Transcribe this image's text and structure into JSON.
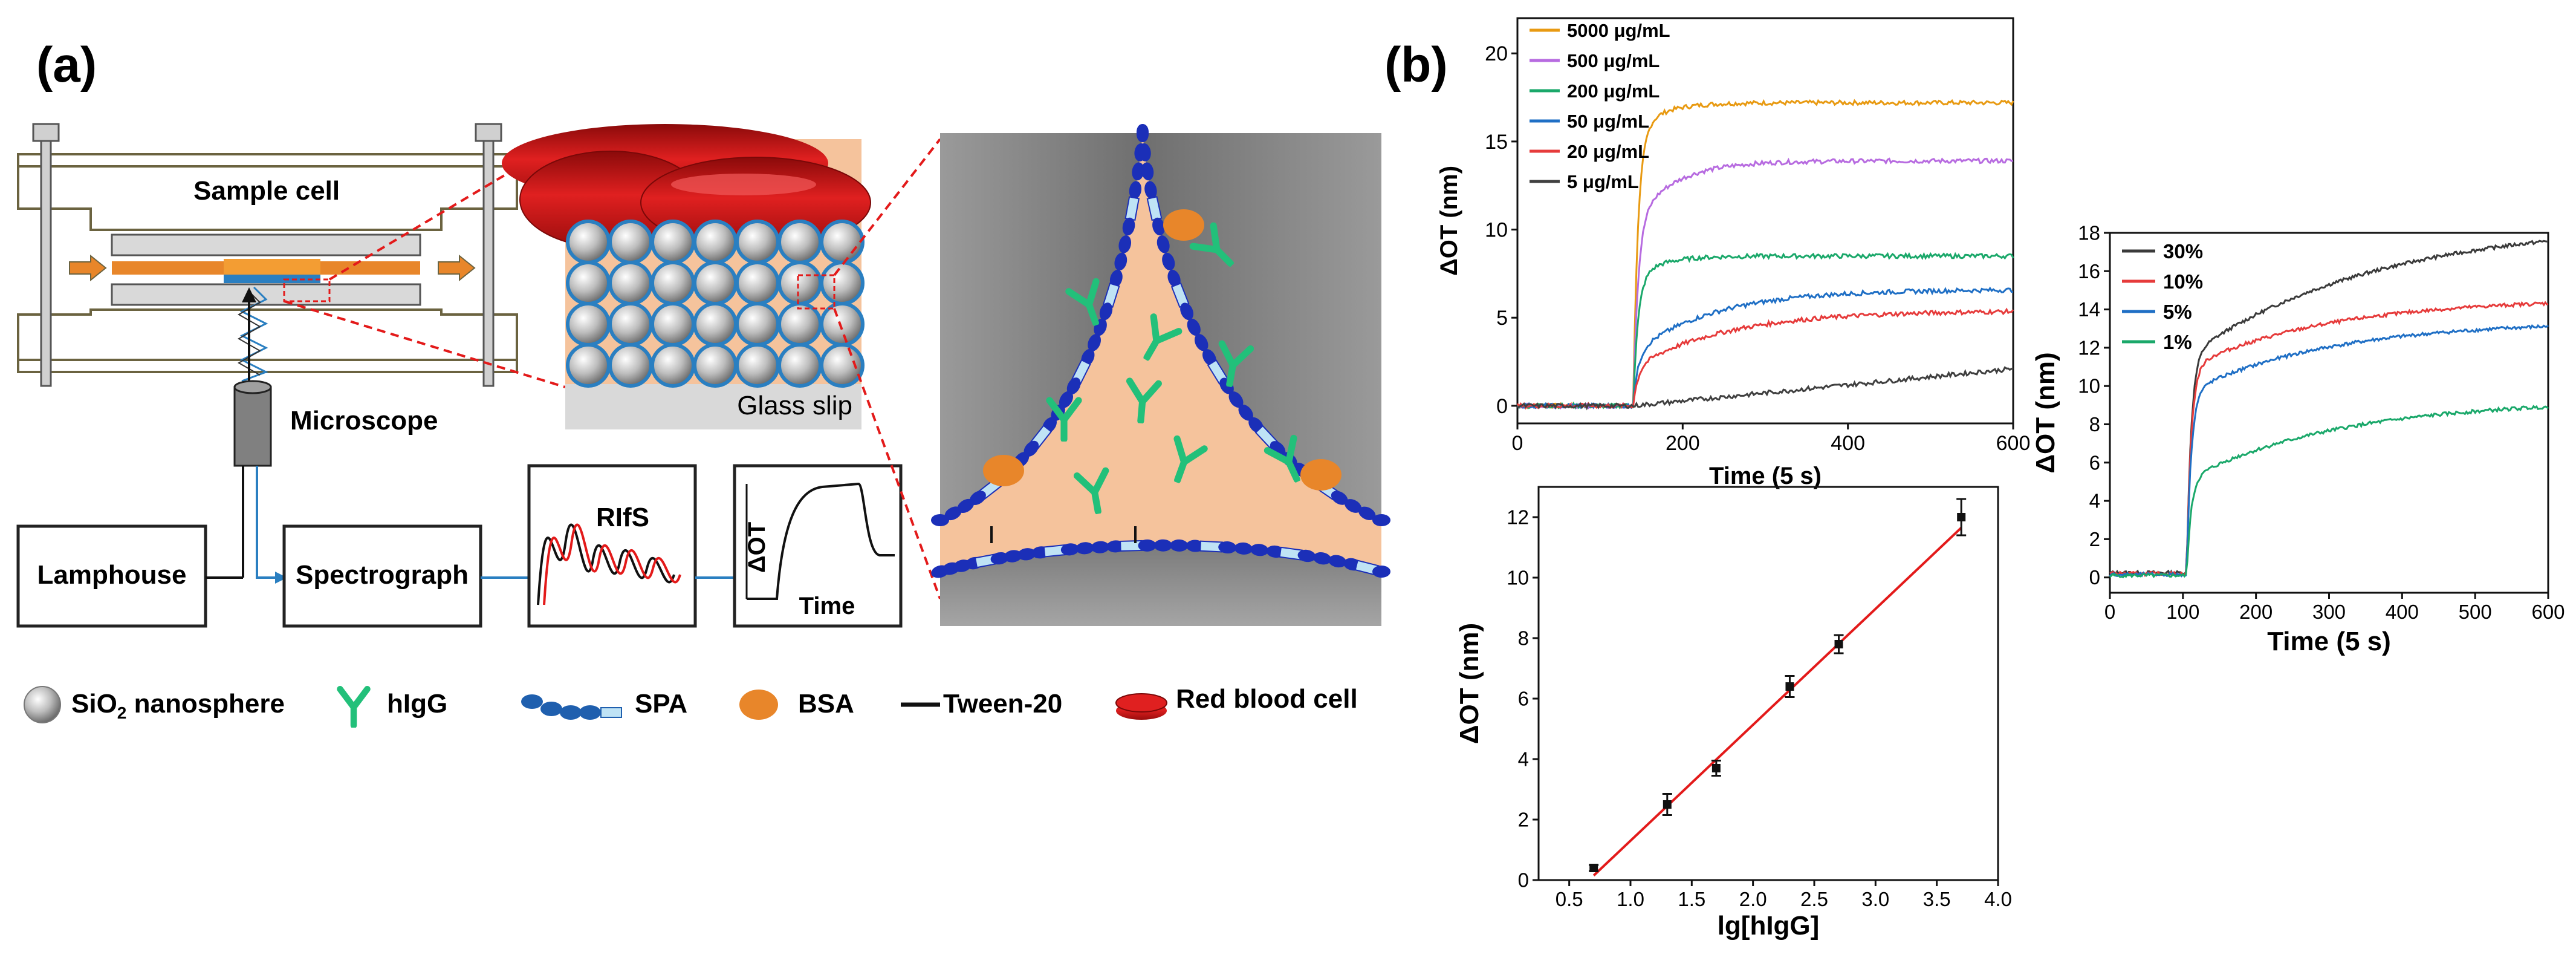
{
  "panel_a": {
    "label": "(a)",
    "sample_cell_label": "Sample cell",
    "microscope_label": "Microscope",
    "glass_slip_label": "Glass slip",
    "boxes": {
      "lamphouse": "Lamphouse",
      "spectrograph": "Spectrograph",
      "rifs": "RIfS"
    },
    "schematic": {
      "y_label": "ΔOT",
      "x_label": "Time"
    },
    "legend": {
      "sio2_prefix": "SiO",
      "sio2_sub": "2",
      "sio2_suffix": " nanosphere",
      "higg": "hIgG",
      "spa": "SPA",
      "bsa": "BSA",
      "tween": "Tween-20",
      "rbc": "Red blood cell"
    },
    "colors": {
      "orange": "#e8862a",
      "peach": "#f5c39c",
      "blue_chain": "#1b2fb8",
      "spa_light": "#bfe3f5",
      "higg_green": "#22c07a",
      "rbc_red": "#d81e1e",
      "glass": "#d9d9d9",
      "bead_ring": "#2a7fc1",
      "arrow_blue": "#2a7fc1",
      "gray_bg": "#8c8c8c"
    }
  },
  "panel_b": {
    "label": "(b)"
  },
  "chart_data": [
    {
      "id": "kinetics-concentration",
      "type": "line",
      "title": "",
      "xlabel": "Time (5 s)",
      "ylabel": "ΔOT (nm)",
      "xlim": [
        0,
        600
      ],
      "ylim": [
        -1,
        22
      ],
      "xticks": [
        0,
        200,
        400,
        600
      ],
      "yticks": [
        0,
        5,
        10,
        15,
        20
      ],
      "legend_position": "top-left",
      "injection_time": 140,
      "series": [
        {
          "name": "5000 μg/mL",
          "color": "#e89a12",
          "plateau": 17.2,
          "rise": 0.9,
          "tau": 20
        },
        {
          "name": "500 μg/mL",
          "color": "#b76be0",
          "plateau": 13.9,
          "rise": 0.75,
          "tau": 30
        },
        {
          "name": "200 μg/mL",
          "color": "#1aa86a",
          "plateau": 8.5,
          "rise": 0.85,
          "tau": 20
        },
        {
          "name": "50 μg/mL",
          "color": "#1f6fc5",
          "plateau": 6.6,
          "rise": 0.45,
          "tau": 60
        },
        {
          "name": "20 μg/mL",
          "color": "#e63b3b",
          "plateau": 5.4,
          "rise": 0.4,
          "tau": 70
        },
        {
          "name": "5 μg/mL",
          "color": "#404040",
          "plateau": 2.1,
          "rise": 0.0,
          "tau": 120
        }
      ]
    },
    {
      "id": "calibration",
      "type": "scatter",
      "title": "",
      "xlabel": "lg[hIgG]",
      "ylabel": "ΔOT (nm)",
      "xlim": [
        0.25,
        4.0
      ],
      "ylim": [
        0,
        13
      ],
      "xticks": [
        0.5,
        1.0,
        1.5,
        2.0,
        2.5,
        3.0,
        3.5,
        4.0
      ],
      "yticks": [
        0,
        2,
        4,
        6,
        8,
        10,
        12
      ],
      "points": [
        {
          "x": 0.7,
          "y": 0.4,
          "err": 0.1
        },
        {
          "x": 1.3,
          "y": 2.5,
          "err": 0.35
        },
        {
          "x": 1.7,
          "y": 3.7,
          "err": 0.25
        },
        {
          "x": 2.3,
          "y": 6.4,
          "err": 0.35
        },
        {
          "x": 2.7,
          "y": 7.8,
          "err": 0.3
        },
        {
          "x": 3.7,
          "y": 12.0,
          "err": 0.6
        }
      ],
      "fit": {
        "x": [
          0.7,
          3.7
        ],
        "y": [
          0.15,
          11.65
        ],
        "color": "#e31a1a"
      }
    },
    {
      "id": "kinetics-percentage",
      "type": "line",
      "title": "",
      "xlabel": "Time (5 s)",
      "ylabel": "ΔOT (nm)",
      "xlim": [
        0,
        600
      ],
      "ylim": [
        -0.8,
        18
      ],
      "xticks": [
        0,
        100,
        200,
        300,
        400,
        500,
        600
      ],
      "yticks": [
        0,
        2,
        4,
        6,
        8,
        10,
        12,
        14,
        16,
        18
      ],
      "legend_position": "top-left",
      "injection_time": 105,
      "series": [
        {
          "name": "30%",
          "color": "#3a3a3a",
          "plateau": 18.6,
          "rise": 0.62,
          "tau": 160,
          "pre": 0.25
        },
        {
          "name": "10%",
          "color": "#e63b3b",
          "plateau": 14.6,
          "rise": 0.75,
          "tau": 120,
          "pre": 0.2
        },
        {
          "name": "5%",
          "color": "#1f6fc5",
          "plateau": 13.4,
          "rise": 0.72,
          "tau": 120,
          "pre": 0.15
        },
        {
          "name": "1%",
          "color": "#1aa86a",
          "plateau": 9.3,
          "rise": 0.55,
          "tau": 130,
          "pre": 0.1
        }
      ]
    }
  ]
}
